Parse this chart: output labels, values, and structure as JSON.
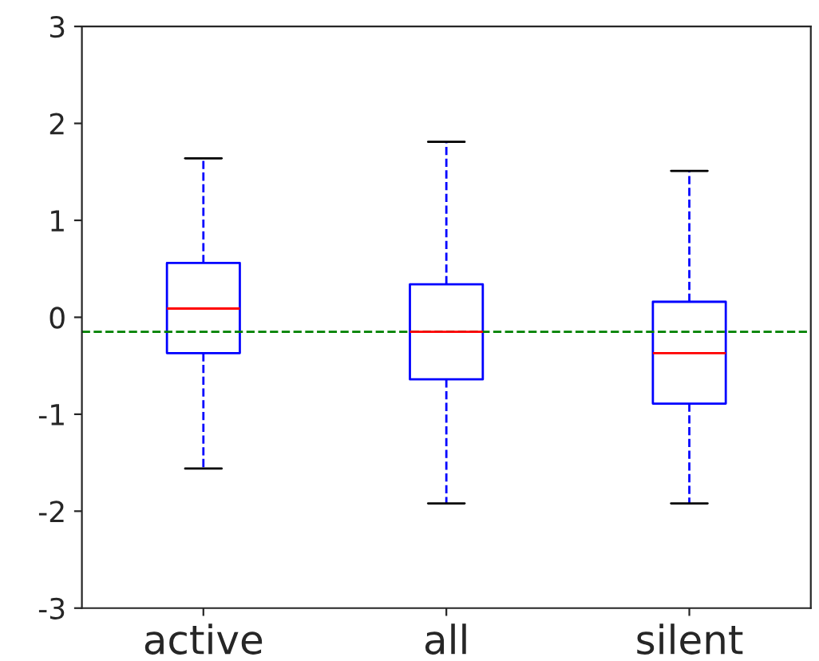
{
  "chart_data": {
    "type": "box",
    "categories": [
      "active",
      "all",
      "silent"
    ],
    "boxes": [
      {
        "low": -1.56,
        "q1": -0.37,
        "median": 0.09,
        "q3": 0.56,
        "high": 1.64
      },
      {
        "low": -1.92,
        "q1": -0.64,
        "median": -0.15,
        "q3": 0.34,
        "high": 1.81
      },
      {
        "low": -1.92,
        "q1": -0.89,
        "median": -0.37,
        "q3": 0.16,
        "high": 1.51
      }
    ],
    "color": "#0000ff",
    "ylim": [
      -3,
      3
    ],
    "yticks": [
      -3,
      -2,
      -1,
      0,
      1,
      2,
      3
    ],
    "ref_lines": [
      {
        "axis": "y",
        "value": -0.15,
        "label": null,
        "color": "#008000",
        "line_style": "dashed"
      }
    ],
    "grid": false
  }
}
